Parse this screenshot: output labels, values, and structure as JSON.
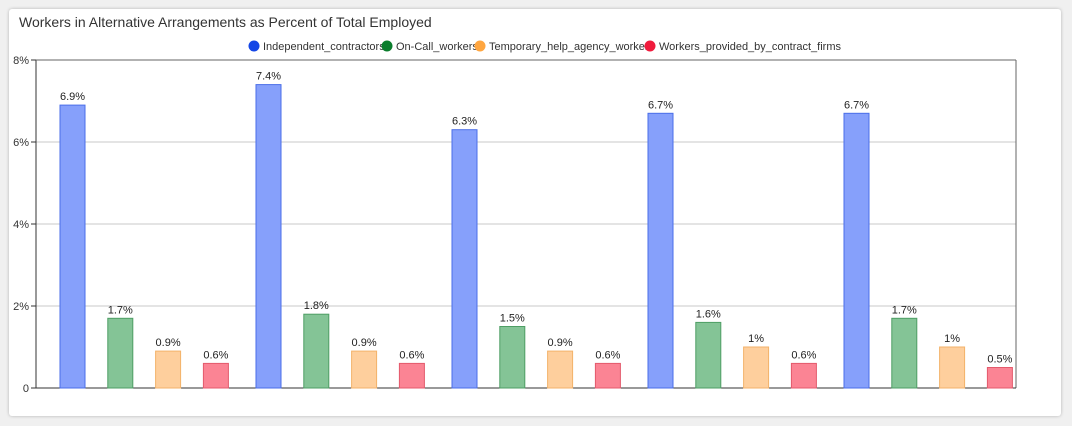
{
  "colors": {
    "background": "#f0f0f0",
    "card": "#ffffff",
    "grid": "#c8c8c8",
    "axis": "#333333"
  },
  "chart_data": {
    "type": "bar",
    "title": "Workers in Alternative Arrangements as Percent of Total Employed",
    "xlabel": "",
    "ylabel": "",
    "ylim": [
      0,
      8
    ],
    "yticks": [
      0,
      2,
      4,
      6,
      8
    ],
    "ytick_labels": [
      "0",
      "2%",
      "4%",
      "6%",
      "8%"
    ],
    "grid": true,
    "legend_position": "top-center",
    "categories": [
      "",
      "",
      "",
      "",
      ""
    ],
    "series": [
      {
        "name": "Independent_contractors",
        "legend_color": "#1446e6",
        "bar_color": "#86a0fb",
        "border_color": "#4a6ee8",
        "values": [
          6.9,
          7.4,
          6.3,
          6.7,
          6.7
        ],
        "labels": [
          "6.9%",
          "7.4%",
          "6.3%",
          "6.7%",
          "6.7%"
        ]
      },
      {
        "name": "On-Call_workers",
        "legend_color": "#0a7d2c",
        "bar_color": "#84c496",
        "border_color": "#4e9e64",
        "values": [
          1.7,
          1.8,
          1.5,
          1.6,
          1.7
        ],
        "labels": [
          "1.7%",
          "1.8%",
          "1.5%",
          "1.6%",
          "1.7%"
        ]
      },
      {
        "name": "Temporary_help_agency_workers",
        "legend_color": "#ffa640",
        "bar_color": "#fecf9d",
        "border_color": "#f3b26a",
        "values": [
          0.9,
          0.9,
          0.9,
          1.0,
          1.0
        ],
        "labels": [
          "0.9%",
          "0.9%",
          "0.9%",
          "1%",
          "1%"
        ]
      },
      {
        "name": "Workers_provided_by_contract_firms",
        "legend_color": "#f01b3c",
        "bar_color": "#fb8494",
        "border_color": "#e45a6c",
        "values": [
          0.6,
          0.6,
          0.6,
          0.6,
          0.5
        ],
        "labels": [
          "0.6%",
          "0.6%",
          "0.6%",
          "0.6%",
          "0.5%"
        ]
      }
    ]
  }
}
